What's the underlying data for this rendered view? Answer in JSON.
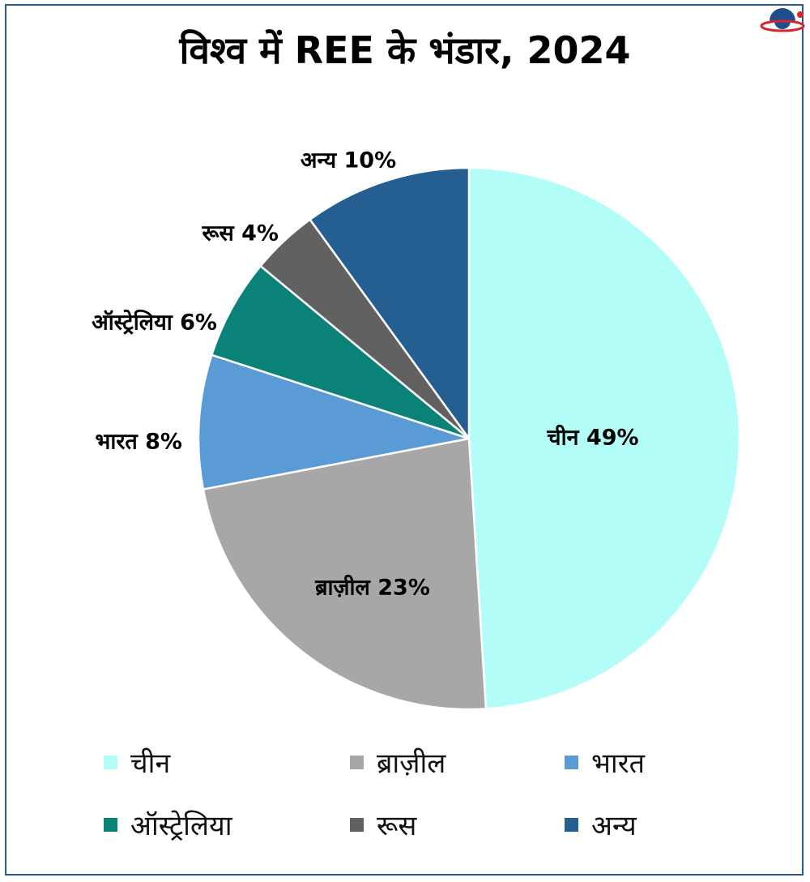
{
  "header": {
    "title": "विश्व में REE के भंडार, 2024",
    "logo_icon": "brand-logo-icon"
  },
  "chart_data": {
    "type": "pie",
    "title": "विश्व में REE के भंडार, 2024",
    "start_angle_deg": 0,
    "direction": "clockwise",
    "slices": [
      {
        "label": "चीन",
        "value": 49,
        "value_label": "49%",
        "color": "#b3fdf9"
      },
      {
        "label": "ब्राज़ील",
        "value": 23,
        "value_label": "23%",
        "color": "#a7a7a7"
      },
      {
        "label": "भारत",
        "value": 8,
        "value_label": "8%",
        "color": "#5b9bd5"
      },
      {
        "label": "ऑस्ट्रेलिया",
        "value": 6,
        "value_label": "6%",
        "color": "#0b8277"
      },
      {
        "label": "रूस",
        "value": 4,
        "value_label": "4%",
        "color": "#616161"
      },
      {
        "label": "अन्य",
        "value": 10,
        "value_label": "10%",
        "color": "#255e91"
      }
    ],
    "legend_position": "bottom",
    "slice_labels": [
      "चीन 49%",
      "ब्राज़ील 23%",
      "भारत 8%",
      "ऑस्ट्रेलिया 6%",
      "रूस 4%",
      "अन्य 10%"
    ]
  },
  "colors": {
    "border": "#2b5a8a",
    "slice_separator": "#ffffff"
  }
}
